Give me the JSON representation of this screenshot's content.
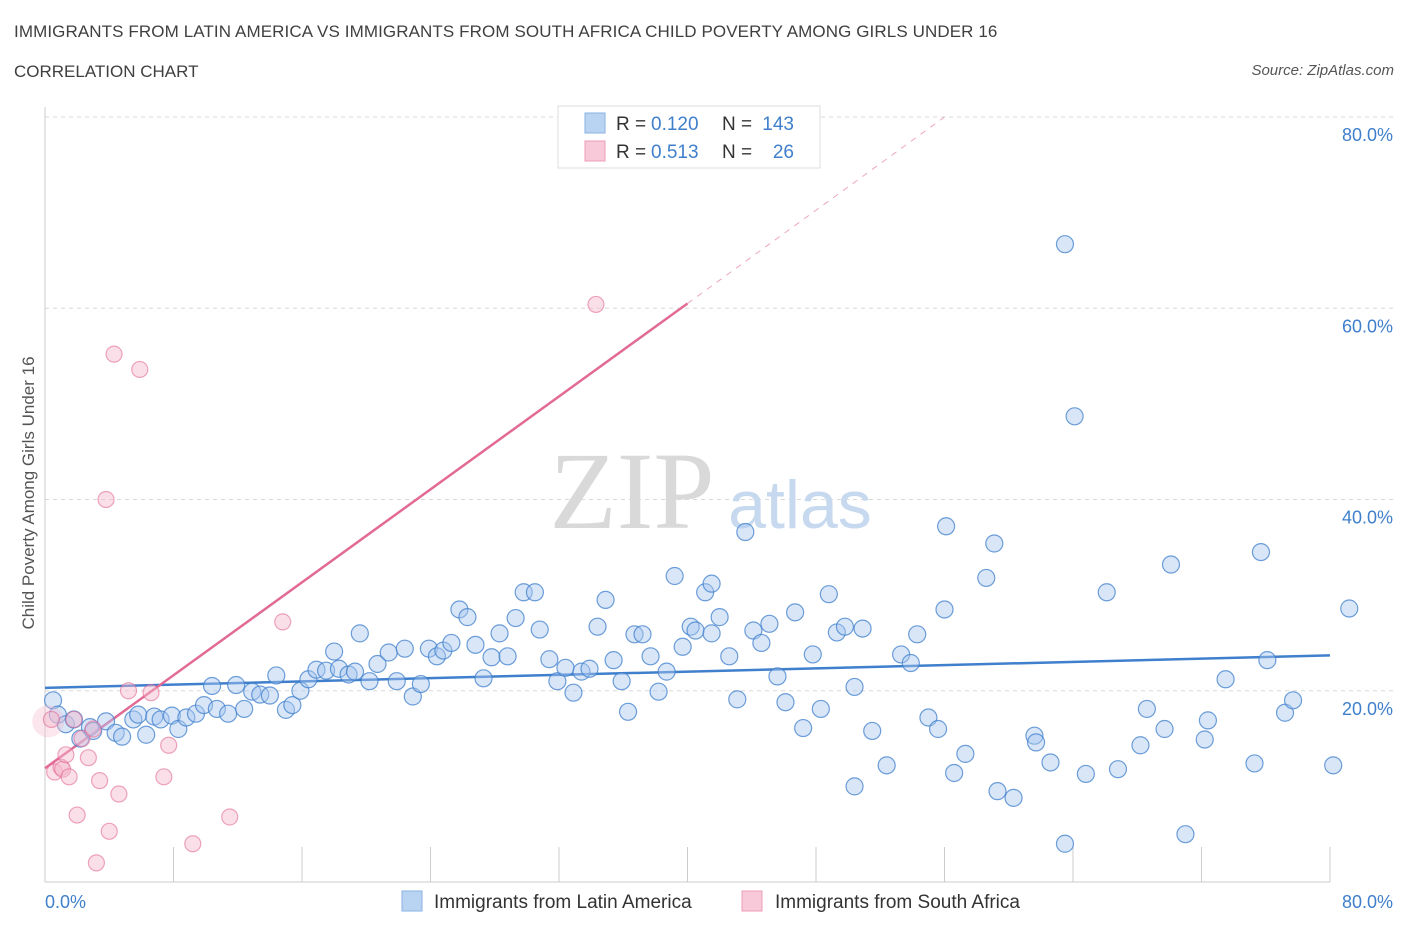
{
  "header": {
    "title": "IMMIGRANTS FROM LATIN AMERICA VS IMMIGRANTS FROM SOUTH AFRICA CHILD POVERTY AMONG GIRLS UNDER 16",
    "subtitle": "CORRELATION CHART",
    "source": "Source: ZipAtlas.com"
  },
  "legend": {
    "rows": [
      {
        "r_label": "R =",
        "r_value": "0.120",
        "n_label": "N =",
        "n_value": "143"
      },
      {
        "r_label": "R =",
        "r_value": "0.513",
        "n_label": "N =",
        "n_value": "26"
      }
    ],
    "bottom": [
      "Immigrants from Latin America",
      "Immigrants from South Africa"
    ]
  },
  "watermark": {
    "zip": "ZIP",
    "atlas": "atlas"
  },
  "colors": {
    "blue": "#3f7fcc",
    "blue_fill": "#a9c8ef",
    "pink": "#e26b96",
    "pink_fill": "#f4b7cb",
    "grid": "#d8d8d8"
  },
  "chart_data": {
    "type": "scatter",
    "title": "IMMIGRANTS FROM LATIN AMERICA VS IMMIGRANTS FROM SOUTH AFRICA CHILD POVERTY AMONG GIRLS UNDER 16",
    "xlabel": "",
    "ylabel": "Child Poverty Among Girls Under 16",
    "xlim": [
      0,
      80
    ],
    "ylim": [
      0,
      80
    ],
    "x_tick_labels": [
      "0.0%",
      "80.0%"
    ],
    "y_tick_labels": [
      "20.0%",
      "40.0%",
      "60.0%",
      "80.0%"
    ],
    "y_ticks": [
      20,
      40,
      60,
      80
    ],
    "grid": true,
    "series": [
      {
        "name": "Immigrants from Latin America",
        "color": "#3f7fcc",
        "trend": {
          "x0": 0,
          "y0": 20.3,
          "x1": 80,
          "y1": 23.7
        },
        "points": [
          [
            0.5,
            19
          ],
          [
            0.8,
            17.5
          ],
          [
            1.3,
            16.5
          ],
          [
            1.8,
            17
          ],
          [
            2.2,
            15
          ],
          [
            2.8,
            16.2
          ],
          [
            3,
            15.8
          ],
          [
            3.8,
            16.8
          ],
          [
            4.4,
            15.6
          ],
          [
            4.8,
            15.2
          ],
          [
            5.5,
            17
          ],
          [
            5.8,
            17.5
          ],
          [
            6.3,
            15.4
          ],
          [
            6.8,
            17.3
          ],
          [
            7.2,
            17
          ],
          [
            7.9,
            17.4
          ],
          [
            8.3,
            16
          ],
          [
            8.8,
            17.2
          ],
          [
            9.4,
            17.6
          ],
          [
            9.9,
            18.5
          ],
          [
            10.4,
            20.5
          ],
          [
            10.7,
            18.1
          ],
          [
            11.4,
            17.6
          ],
          [
            11.9,
            20.6
          ],
          [
            12.4,
            18.1
          ],
          [
            12.9,
            19.9
          ],
          [
            13.4,
            19.6
          ],
          [
            14,
            19.5
          ],
          [
            14.4,
            21.6
          ],
          [
            15,
            18
          ],
          [
            15.4,
            18.5
          ],
          [
            15.9,
            20
          ],
          [
            16.4,
            21.2
          ],
          [
            16.9,
            22.2
          ],
          [
            17.5,
            22.1
          ],
          [
            18,
            24.1
          ],
          [
            18.3,
            22.3
          ],
          [
            18.9,
            21.7
          ],
          [
            19.3,
            22
          ],
          [
            19.6,
            26
          ],
          [
            20.2,
            21
          ],
          [
            20.7,
            22.8
          ],
          [
            21.4,
            24
          ],
          [
            21.9,
            21
          ],
          [
            22.4,
            24.4
          ],
          [
            22.9,
            19.4
          ],
          [
            23.4,
            20.7
          ],
          [
            23.9,
            24.4
          ],
          [
            24.4,
            23.6
          ],
          [
            24.8,
            24.2
          ],
          [
            25.3,
            25
          ],
          [
            25.8,
            28.5
          ],
          [
            26.3,
            27.7
          ],
          [
            26.8,
            24.8
          ],
          [
            27.3,
            21.3
          ],
          [
            27.8,
            23.5
          ],
          [
            28.3,
            26
          ],
          [
            28.8,
            23.6
          ],
          [
            29.3,
            27.6
          ],
          [
            29.8,
            30.3
          ],
          [
            30.5,
            30.3
          ],
          [
            30.8,
            26.4
          ],
          [
            31.4,
            23.3
          ],
          [
            31.9,
            21
          ],
          [
            32.4,
            22.4
          ],
          [
            32.9,
            19.8
          ],
          [
            33.4,
            22
          ],
          [
            33.9,
            22.3
          ],
          [
            34.4,
            26.7
          ],
          [
            34.9,
            29.5
          ],
          [
            35.4,
            23.2
          ],
          [
            35.9,
            21
          ],
          [
            36.3,
            17.8
          ],
          [
            36.7,
            25.9
          ],
          [
            37.2,
            25.9
          ],
          [
            37.7,
            23.6
          ],
          [
            38.2,
            19.9
          ],
          [
            38.7,
            22
          ],
          [
            39.2,
            32
          ],
          [
            39.7,
            24.6
          ],
          [
            40.2,
            26.7
          ],
          [
            40.5,
            26.3
          ],
          [
            41.1,
            30.3
          ],
          [
            41.5,
            31.2
          ],
          [
            42,
            27.7
          ],
          [
            42.6,
            23.6
          ],
          [
            43.1,
            19.1
          ],
          [
            43.6,
            36.6
          ],
          [
            44.1,
            26.3
          ],
          [
            44.6,
            25
          ],
          [
            45.1,
            27
          ],
          [
            45.6,
            21.5
          ],
          [
            46.1,
            18.8
          ],
          [
            46.7,
            28.2
          ],
          [
            47.2,
            16.1
          ],
          [
            47.8,
            23.8
          ],
          [
            48.3,
            18.1
          ],
          [
            48.8,
            30.1
          ],
          [
            49.3,
            26.1
          ],
          [
            49.8,
            26.7
          ],
          [
            50.4,
            20.4
          ],
          [
            50.9,
            26.5
          ],
          [
            51.5,
            15.8
          ],
          [
            52.4,
            12.2
          ],
          [
            53.3,
            23.8
          ],
          [
            53.9,
            22.9
          ],
          [
            54.3,
            25.9
          ],
          [
            55,
            17.2
          ],
          [
            55.6,
            16
          ],
          [
            56.1,
            37.2
          ],
          [
            56.6,
            11.4
          ],
          [
            57.3,
            13.4
          ],
          [
            58.6,
            31.8
          ],
          [
            59.1,
            35.4
          ],
          [
            59.3,
            9.5
          ],
          [
            60.3,
            8.8
          ],
          [
            61.6,
            15.3
          ],
          [
            61.7,
            14.6
          ],
          [
            62.6,
            12.5
          ],
          [
            63.5,
            66.7
          ],
          [
            64.1,
            48.7
          ],
          [
            64.8,
            11.3
          ],
          [
            66.1,
            30.3
          ],
          [
            66.8,
            11.8
          ],
          [
            68.2,
            14.3
          ],
          [
            68.6,
            18.1
          ],
          [
            69.7,
            16
          ],
          [
            70.1,
            33.2
          ],
          [
            71,
            5
          ],
          [
            72.2,
            14.9
          ],
          [
            72.4,
            16.9
          ],
          [
            73.5,
            21.2
          ],
          [
            75.3,
            12.4
          ],
          [
            75.7,
            34.5
          ],
          [
            76.1,
            23.2
          ],
          [
            77.2,
            17.7
          ],
          [
            77.7,
            19
          ],
          [
            80.2,
            12.2
          ],
          [
            81.2,
            28.6
          ],
          [
            50.4,
            10
          ],
          [
            41.5,
            26
          ],
          [
            56,
            28.5
          ],
          [
            63.5,
            4
          ]
        ]
      },
      {
        "name": "Immigrants from South Africa",
        "color": "#e26b96",
        "trend": {
          "x0": 0,
          "y0": 11.9,
          "x1": 40,
          "y1": 60.5
        },
        "trend_dashed": {
          "x0": 40,
          "y0": 60.5,
          "x1": 56,
          "y1": 80
        },
        "points": [
          [
            0.4,
            17
          ],
          [
            0.6,
            11.5
          ],
          [
            1.0,
            12
          ],
          [
            1.1,
            11.8
          ],
          [
            1.3,
            13.3
          ],
          [
            1.5,
            11
          ],
          [
            1.8,
            17
          ],
          [
            2.0,
            7
          ],
          [
            2.3,
            15
          ],
          [
            2.7,
            13
          ],
          [
            3.0,
            16
          ],
          [
            3.2,
            2
          ],
          [
            3.4,
            10.6
          ],
          [
            3.8,
            40
          ],
          [
            4.0,
            5.3
          ],
          [
            4.3,
            55.2
          ],
          [
            4.6,
            9.2
          ],
          [
            5.2,
            20
          ],
          [
            5.9,
            53.6
          ],
          [
            6.6,
            19.8
          ],
          [
            7.4,
            11
          ],
          [
            7.7,
            14.3
          ],
          [
            9.2,
            4
          ],
          [
            11.5,
            6.8
          ],
          [
            14.8,
            27.2
          ],
          [
            34.3,
            60.4
          ]
        ]
      }
    ]
  }
}
